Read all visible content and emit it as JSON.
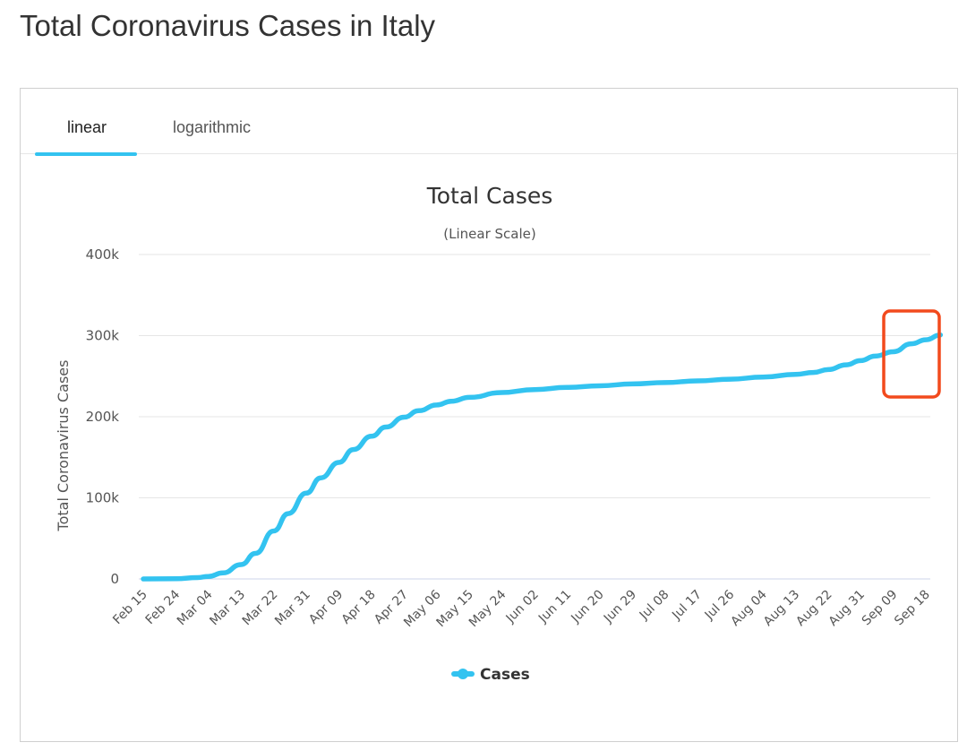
{
  "page": {
    "title": "Total Coronavirus Cases in Italy"
  },
  "tabs": [
    {
      "label": "linear",
      "active": true
    },
    {
      "label": "logarithmic",
      "active": false
    }
  ],
  "colors": {
    "accent": "#33c3f0",
    "series": "#33c3f0",
    "highlight": "#f24a1d"
  },
  "chart_data": {
    "type": "line",
    "title": "Total Cases",
    "subtitle": "(Linear Scale)",
    "ylabel": "Total Coronavirus Cases",
    "xlabel": "",
    "ylim": [
      0,
      400000
    ],
    "yticks": [
      0,
      100000,
      200000,
      300000,
      400000
    ],
    "ytick_labels": [
      "0",
      "100k",
      "200k",
      "300k",
      "400k"
    ],
    "xtick_labels": [
      "Feb 15",
      "Feb 24",
      "Mar 04",
      "Mar 13",
      "Mar 22",
      "Mar 31",
      "Apr 09",
      "Apr 18",
      "Apr 27",
      "May 06",
      "May 15",
      "May 24",
      "Jun 02",
      "Jun 11",
      "Jun 20",
      "Jun 29",
      "Jul 08",
      "Jul 17",
      "Jul 26",
      "Aug 04",
      "Aug 13",
      "Aug 22",
      "Aug 31",
      "Sep 09",
      "Sep 18"
    ],
    "grid": true,
    "legend": "bottom-center",
    "series": [
      {
        "name": "Cases",
        "x": [
          "Feb 15",
          "Feb 24",
          "Mar 01",
          "Mar 04",
          "Mar 08",
          "Mar 13",
          "Mar 17",
          "Mar 22",
          "Mar 26",
          "Mar 31",
          "Apr 04",
          "Apr 09",
          "Apr 13",
          "Apr 18",
          "Apr 22",
          "Apr 27",
          "May 01",
          "May 06",
          "May 10",
          "May 15",
          "May 24",
          "Jun 02",
          "Jun 11",
          "Jun 20",
          "Jun 29",
          "Jul 08",
          "Jul 17",
          "Jul 26",
          "Aug 04",
          "Aug 13",
          "Aug 18",
          "Aug 22",
          "Aug 27",
          "Aug 31",
          "Sep 04",
          "Sep 09",
          "Sep 14",
          "Sep 18",
          "Sep 22"
        ],
        "y": [
          3,
          229,
          1694,
          3089,
          7375,
          17660,
          31506,
          59138,
          80539,
          105792,
          124632,
          143626,
          159516,
          175925,
          187327,
          199414,
          207428,
          214457,
          219070,
          223885,
          229858,
          233515,
          236142,
          238159,
          240436,
          242149,
          244216,
          246286,
          248803,
          252235,
          254636,
          258136,
          263949,
          269214,
          274644,
          280153,
          289990,
          294932,
          300897
        ]
      }
    ]
  }
}
